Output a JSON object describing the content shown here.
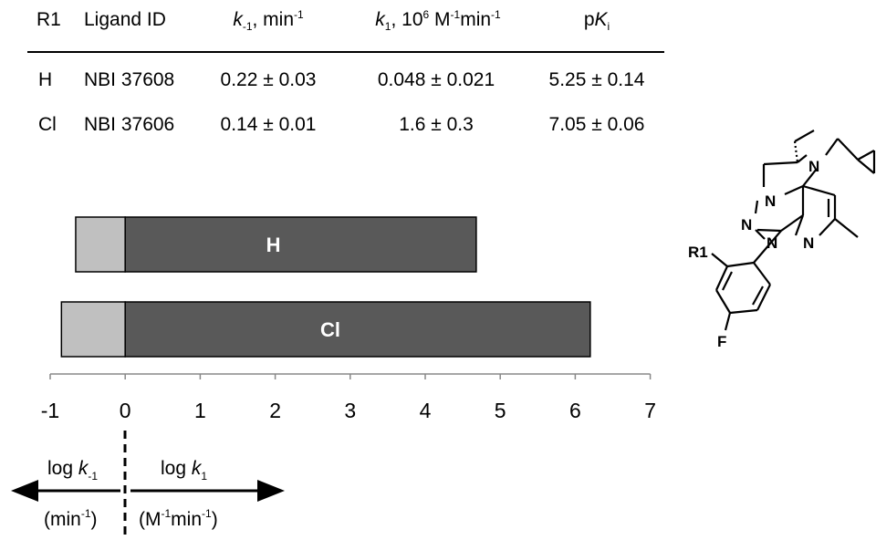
{
  "table": {
    "headers": {
      "r1": "R1",
      "ligand": "Ligand ID",
      "kminus_k": "k",
      "kminus_sub": "-1",
      "kminus_unit": ", min",
      "kminus_sup": "-1",
      "kplus_k": "k",
      "kplus_sub": "1",
      "kplus_unit": ", 10",
      "kplus_sup1": "6",
      "kplus_m": " M",
      "kplus_sup2": "-1",
      "kplus_min": "min",
      "kplus_sup3": "-1",
      "pki_p": "p",
      "pki_k": "K",
      "pki_sub": "i"
    },
    "rows": [
      {
        "r1": "H",
        "ligand": "NBI 37608",
        "kminus": "0.22 ± 0.03",
        "kplus": "0.048 ± 0.021",
        "pki": "5.25 ± 0.14"
      },
      {
        "r1": "Cl",
        "ligand": "NBI 37606",
        "kminus": "0.14 ± 0.01",
        "kplus": "1.6 ± 0.3",
        "pki": "7.05 ± 0.06"
      }
    ]
  },
  "chart_data": {
    "type": "bar",
    "orientation": "horizontal",
    "stacked": true,
    "categories": [
      "H",
      "Cl"
    ],
    "series": [
      {
        "values": [
          -0.66,
          -0.85
        ],
        "color": "#c0c0c0"
      },
      {
        "values": [
          4.68,
          6.2
        ],
        "color": "#595959"
      }
    ],
    "xlim": [
      -1,
      7
    ],
    "xticks": [
      "-1",
      "0",
      "1",
      "2",
      "3",
      "4",
      "5",
      "6",
      "7"
    ],
    "grid": false
  },
  "arrows": {
    "left_label_log": "log ",
    "left_label_k": "k",
    "left_label_sub": "-1",
    "left_unit_open": "(min",
    "left_unit_sup": "-1",
    "left_unit_close": ")",
    "right_label_log": "log ",
    "right_label_k": "k",
    "right_label_sub": "1",
    "right_unit_open": "(M",
    "right_unit_sup": "-1",
    "right_unit_mid": "min",
    "right_unit_sup2": "-1",
    "right_unit_close": ")"
  },
  "molecule": {
    "labels": [
      "N",
      "N",
      "N",
      "N",
      "N",
      "R1",
      "F"
    ]
  }
}
